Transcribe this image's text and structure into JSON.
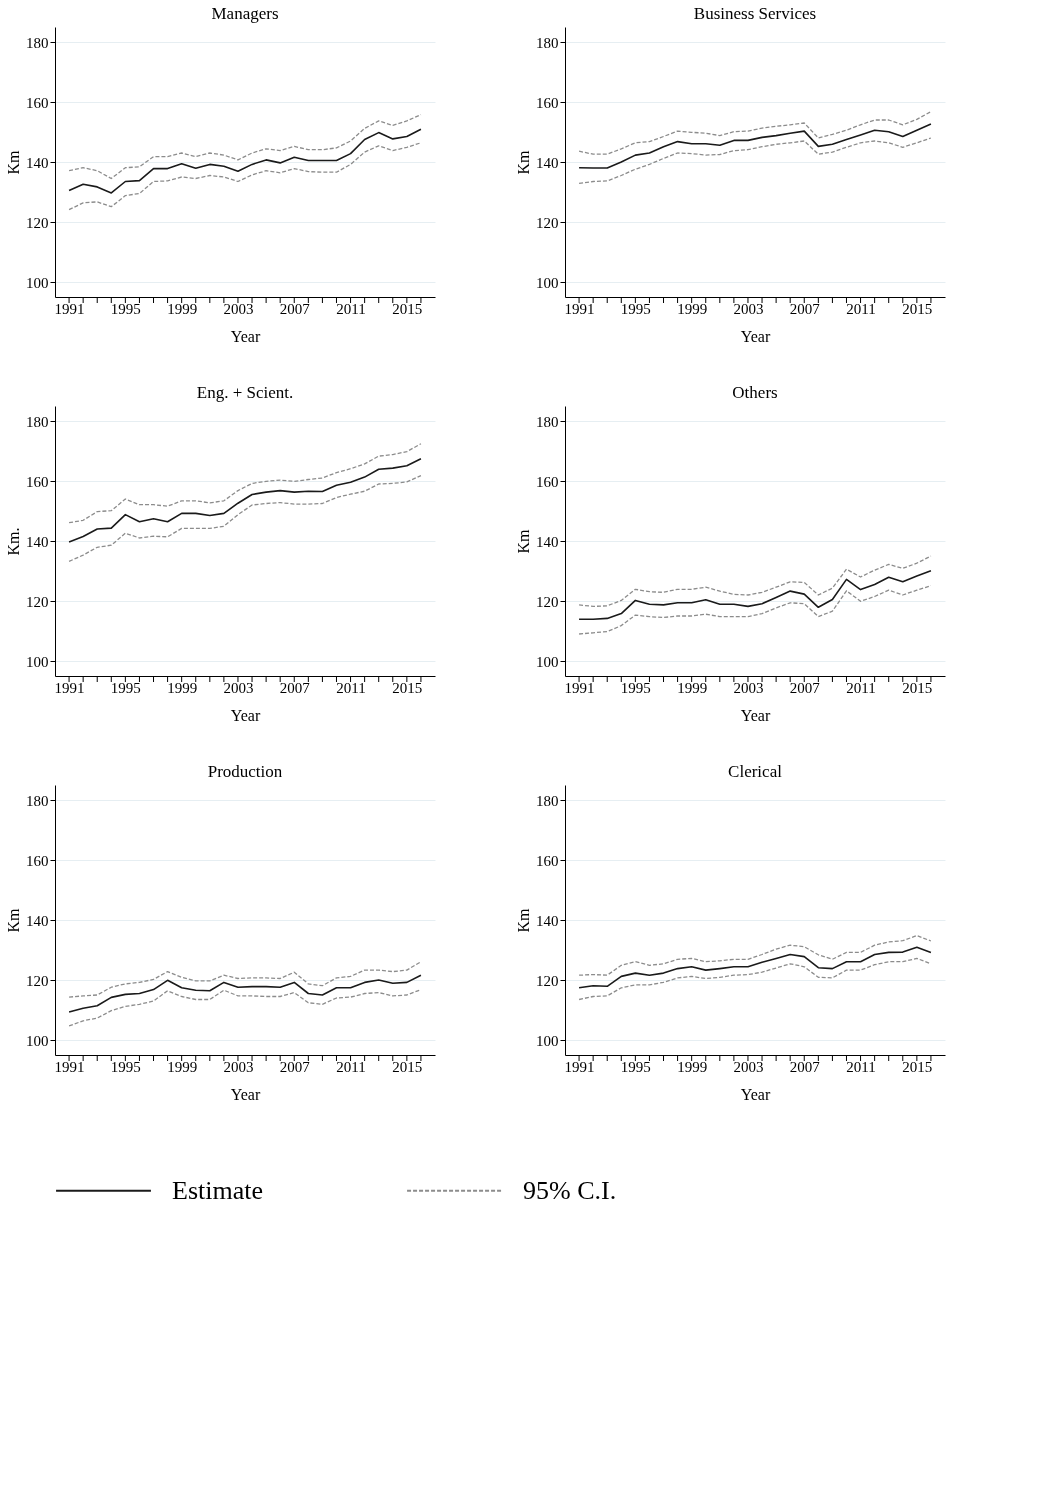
{
  "chart_data": [
    {
      "type": "line",
      "title": "Managers",
      "xlabel": "Year",
      "ylabel": "Km",
      "xlim": [
        1990,
        2017
      ],
      "ylim": [
        95,
        185
      ],
      "yticks": [
        100,
        120,
        140,
        160,
        180
      ],
      "xticks": [
        1991,
        {
          "value": 1992,
          "label": null
        },
        {
          "value": 1993,
          "label": null
        },
        {
          "value": 1994,
          "label": null
        },
        1995,
        {
          "value": 1996,
          "label": null
        },
        {
          "value": 1997,
          "label": null
        },
        {
          "value": 1998,
          "label": null
        },
        1999,
        {
          "value": 2000,
          "label": null
        },
        {
          "value": 2001,
          "label": null
        },
        {
          "value": 2002,
          "label": null
        },
        2003,
        {
          "value": 2004,
          "label": null
        },
        {
          "value": 2005,
          "label": null
        },
        {
          "value": 2006,
          "label": null
        },
        2007,
        {
          "value": 2008,
          "label": null
        },
        {
          "value": 2009,
          "label": null
        },
        {
          "value": 2010,
          "label": null
        },
        2011,
        {
          "value": 2012,
          "label": null
        },
        {
          "value": 2013,
          "label": null
        },
        {
          "value": 2014,
          "label": null
        },
        2015,
        {
          "value": 2016,
          "label": null
        }
      ],
      "x": [
        1991,
        1992,
        1993,
        1994,
        1995,
        1996,
        1997,
        1998,
        1999,
        2000,
        2001,
        2002,
        2003,
        2004,
        2005,
        2006,
        2007,
        2008,
        2009,
        2010,
        2011,
        2012,
        2013,
        2014,
        2015,
        2016
      ],
      "grid": "y",
      "series": [
        {
          "color": "#1a1a1a",
          "line_style": "solid",
          "values": [
            130.5,
            132.6,
            131.7,
            129.7,
            133.5,
            133.8,
            137.8,
            137.8,
            139.4,
            137.9,
            139.2,
            138.6,
            136.9,
            139.2,
            140.7,
            139.7,
            141.6,
            140.5,
            140.5,
            140.5,
            142.8,
            147.5,
            149.8,
            147.7,
            148.5,
            150.9
          ]
        },
        {
          "color": "#8c8c8c",
          "line_style": "dashed",
          "values": [
            137.1,
            138.1,
            137.1,
            134.5,
            138.1,
            138.4,
            141.8,
            141.8,
            143.0,
            141.8,
            143.0,
            142.3,
            140.7,
            143.0,
            144.4,
            143.8,
            145.2,
            144.1,
            144.1,
            144.7,
            147.0,
            151.2,
            153.7,
            152.2,
            153.7,
            155.8
          ]
        },
        {
          "color": "#8c8c8c",
          "line_style": "dashed",
          "values": [
            124.1,
            126.4,
            126.7,
            125.1,
            128.8,
            129.5,
            133.5,
            133.7,
            135.0,
            134.5,
            135.5,
            135.0,
            133.5,
            135.7,
            137.1,
            136.4,
            137.8,
            136.8,
            136.6,
            136.6,
            139.2,
            143.3,
            145.4,
            143.8,
            144.9,
            146.4
          ]
        }
      ]
    },
    {
      "type": "line",
      "title": "Business Services",
      "xlabel": "Year",
      "ylabel": "Km",
      "xlim": [
        1990,
        2017
      ],
      "ylim": [
        95,
        185
      ],
      "yticks": [
        100,
        120,
        140,
        160,
        180
      ],
      "xticks": [
        1991,
        {
          "value": 1992,
          "label": null
        },
        {
          "value": 1993,
          "label": null
        },
        {
          "value": 1994,
          "label": null
        },
        1995,
        {
          "value": 1996,
          "label": null
        },
        {
          "value": 1997,
          "label": null
        },
        {
          "value": 1998,
          "label": null
        },
        1999,
        {
          "value": 2000,
          "label": null
        },
        {
          "value": 2001,
          "label": null
        },
        {
          "value": 2002,
          "label": null
        },
        2003,
        {
          "value": 2004,
          "label": null
        },
        {
          "value": 2005,
          "label": null
        },
        {
          "value": 2006,
          "label": null
        },
        2007,
        {
          "value": 2008,
          "label": null
        },
        {
          "value": 2009,
          "label": null
        },
        {
          "value": 2010,
          "label": null
        },
        2011,
        {
          "value": 2012,
          "label": null
        },
        {
          "value": 2013,
          "label": null
        },
        {
          "value": 2014,
          "label": null
        },
        2015,
        {
          "value": 2016,
          "label": null
        }
      ],
      "x": [
        1991,
        1992,
        1993,
        1994,
        1995,
        1996,
        1997,
        1998,
        1999,
        2000,
        2001,
        2002,
        2003,
        2004,
        2005,
        2006,
        2007,
        2008,
        2009,
        2010,
        2011,
        2012,
        2013,
        2014,
        2015,
        2016
      ],
      "grid": "y",
      "series": [
        {
          "color": "#1a1a1a",
          "line_style": "solid",
          "values": [
            138.1,
            138.0,
            138.0,
            140.0,
            142.3,
            143.0,
            145.1,
            146.8,
            146.1,
            146.1,
            145.6,
            147.2,
            147.2,
            148.2,
            148.8,
            149.6,
            150.3,
            145.2,
            145.9,
            147.5,
            149.0,
            150.6,
            150.1,
            148.5,
            150.6,
            152.7
          ]
        },
        {
          "color": "#8c8c8c",
          "line_style": "dashed",
          "values": [
            143.6,
            142.6,
            142.6,
            144.4,
            146.4,
            146.8,
            148.5,
            150.3,
            149.9,
            149.6,
            148.8,
            150.1,
            150.3,
            151.3,
            151.9,
            152.4,
            153.0,
            148.0,
            149.2,
            150.6,
            152.4,
            154.0,
            154.0,
            152.4,
            154.2,
            156.8
          ]
        },
        {
          "color": "#8c8c8c",
          "line_style": "dashed",
          "values": [
            132.9,
            133.5,
            133.7,
            135.5,
            137.6,
            139.2,
            141.2,
            143.0,
            142.8,
            142.3,
            142.5,
            143.8,
            144.1,
            145.1,
            145.9,
            146.4,
            147.0,
            142.6,
            143.3,
            144.9,
            146.4,
            147.0,
            146.4,
            144.9,
            146.4,
            148.0
          ]
        }
      ]
    },
    {
      "type": "line",
      "title": "Eng. + Scient.",
      "xlabel": "Year",
      "ylabel": "Km.",
      "xlim": [
        1990,
        2017
      ],
      "ylim": [
        95,
        185
      ],
      "yticks": [
        100,
        120,
        140,
        160,
        180
      ],
      "xticks": [
        1991,
        {
          "value": 1992,
          "label": null
        },
        {
          "value": 1993,
          "label": null
        },
        {
          "value": 1994,
          "label": null
        },
        1995,
        {
          "value": 1996,
          "label": null
        },
        {
          "value": 1997,
          "label": null
        },
        {
          "value": 1998,
          "label": null
        },
        1999,
        {
          "value": 2000,
          "label": null
        },
        {
          "value": 2001,
          "label": null
        },
        {
          "value": 2002,
          "label": null
        },
        2003,
        {
          "value": 2004,
          "label": null
        },
        {
          "value": 2005,
          "label": null
        },
        {
          "value": 2006,
          "label": null
        },
        2007,
        {
          "value": 2008,
          "label": null
        },
        {
          "value": 2009,
          "label": null
        },
        {
          "value": 2010,
          "label": null
        },
        2011,
        {
          "value": 2012,
          "label": null
        },
        {
          "value": 2013,
          "label": null
        },
        {
          "value": 2014,
          "label": null
        },
        2015,
        {
          "value": 2016,
          "label": null
        }
      ],
      "x": [
        1991,
        1992,
        1993,
        1994,
        1995,
        1996,
        1997,
        1998,
        1999,
        2000,
        2001,
        2002,
        2003,
        2004,
        2005,
        2006,
        2007,
        2008,
        2009,
        2010,
        2011,
        2012,
        2013,
        2014,
        2015,
        2016
      ],
      "grid": "y",
      "series": [
        {
          "color": "#1a1a1a",
          "line_style": "solid",
          "values": [
            139.7,
            141.5,
            144.0,
            144.3,
            148.8,
            146.4,
            147.4,
            146.4,
            149.2,
            149.2,
            148.5,
            149.2,
            152.6,
            155.5,
            156.3,
            156.8,
            156.3,
            156.6,
            156.5,
            158.6,
            159.6,
            161.3,
            163.9,
            164.3,
            165.1,
            167.4
          ]
        },
        {
          "color": "#8c8c8c",
          "line_style": "dashed",
          "values": [
            146.1,
            146.9,
            149.8,
            150.1,
            154.0,
            152.1,
            152.1,
            151.6,
            153.4,
            153.4,
            152.7,
            153.4,
            156.8,
            159.2,
            159.9,
            160.3,
            159.9,
            160.5,
            161.0,
            162.8,
            164.1,
            165.7,
            168.3,
            168.8,
            169.8,
            172.4
          ]
        },
        {
          "color": "#8c8c8c",
          "line_style": "dashed",
          "values": [
            133.2,
            135.3,
            137.9,
            138.6,
            142.6,
            141.0,
            141.6,
            141.4,
            144.2,
            144.2,
            144.2,
            144.9,
            148.8,
            152.0,
            152.5,
            152.8,
            152.3,
            152.3,
            152.5,
            154.5,
            155.6,
            156.6,
            159.0,
            159.2,
            159.7,
            161.8
          ]
        }
      ]
    },
    {
      "type": "line",
      "title": "Others",
      "xlabel": "Year",
      "ylabel": "Km",
      "xlim": [
        1990,
        2017
      ],
      "ylim": [
        95,
        185
      ],
      "yticks": [
        100,
        120,
        140,
        160,
        180
      ],
      "xticks": [
        1991,
        {
          "value": 1992,
          "label": null
        },
        {
          "value": 1993,
          "label": null
        },
        {
          "value": 1994,
          "label": null
        },
        1995,
        {
          "value": 1996,
          "label": null
        },
        {
          "value": 1997,
          "label": null
        },
        {
          "value": 1998,
          "label": null
        },
        1999,
        {
          "value": 2000,
          "label": null
        },
        {
          "value": 2001,
          "label": null
        },
        {
          "value": 2002,
          "label": null
        },
        2003,
        {
          "value": 2004,
          "label": null
        },
        {
          "value": 2005,
          "label": null
        },
        {
          "value": 2006,
          "label": null
        },
        2007,
        {
          "value": 2008,
          "label": null
        },
        {
          "value": 2009,
          "label": null
        },
        {
          "value": 2010,
          "label": null
        },
        2011,
        {
          "value": 2012,
          "label": null
        },
        {
          "value": 2013,
          "label": null
        },
        {
          "value": 2014,
          "label": null
        },
        2015,
        {
          "value": 2016,
          "label": null
        }
      ],
      "x": [
        1991,
        1992,
        1993,
        1994,
        1995,
        1996,
        1997,
        1998,
        1999,
        2000,
        2001,
        2002,
        2003,
        2004,
        2005,
        2006,
        2007,
        2008,
        2009,
        2010,
        2011,
        2012,
        2013,
        2014,
        2015,
        2016
      ],
      "grid": "y",
      "series": [
        {
          "color": "#1a1a1a",
          "line_style": "solid",
          "values": [
            113.9,
            113.9,
            114.2,
            115.8,
            120.2,
            118.9,
            118.7,
            119.4,
            119.4,
            120.4,
            118.9,
            118.9,
            118.2,
            119.1,
            121.2,
            123.3,
            122.3,
            117.9,
            120.5,
            127.2,
            123.8,
            125.5,
            127.9,
            126.4,
            128.3,
            130.1
          ]
        },
        {
          "color": "#8c8c8c",
          "line_style": "dashed",
          "values": [
            118.7,
            118.2,
            118.4,
            120.2,
            123.9,
            123.1,
            122.9,
            123.9,
            123.9,
            124.6,
            123.3,
            122.2,
            122.0,
            122.9,
            124.6,
            126.4,
            126.2,
            122.0,
            124.3,
            130.6,
            128.0,
            130.3,
            132.2,
            130.9,
            132.6,
            135.0
          ]
        },
        {
          "color": "#8c8c8c",
          "line_style": "dashed",
          "values": [
            109.0,
            109.4,
            109.8,
            111.8,
            115.3,
            114.8,
            114.5,
            115.0,
            115.0,
            115.6,
            114.8,
            114.8,
            114.8,
            115.8,
            117.7,
            119.4,
            119.1,
            114.8,
            116.6,
            123.4,
            119.9,
            121.5,
            123.6,
            122.0,
            123.6,
            125.1
          ]
        }
      ]
    },
    {
      "type": "line",
      "title": "Production",
      "xlabel": "Year",
      "ylabel": "Km",
      "xlim": [
        1990,
        2017
      ],
      "ylim": [
        95,
        185
      ],
      "yticks": [
        100,
        120,
        140,
        160,
        180
      ],
      "xticks": [
        1991,
        {
          "value": 1992,
          "label": null
        },
        {
          "value": 1993,
          "label": null
        },
        {
          "value": 1994,
          "label": null
        },
        1995,
        {
          "value": 1996,
          "label": null
        },
        {
          "value": 1997,
          "label": null
        },
        {
          "value": 1998,
          "label": null
        },
        1999,
        {
          "value": 2000,
          "label": null
        },
        {
          "value": 2001,
          "label": null
        },
        {
          "value": 2002,
          "label": null
        },
        2003,
        {
          "value": 2004,
          "label": null
        },
        {
          "value": 2005,
          "label": null
        },
        {
          "value": 2006,
          "label": null
        },
        2007,
        {
          "value": 2008,
          "label": null
        },
        {
          "value": 2009,
          "label": null
        },
        {
          "value": 2010,
          "label": null
        },
        2011,
        {
          "value": 2012,
          "label": null
        },
        {
          "value": 2013,
          "label": null
        },
        {
          "value": 2014,
          "label": null
        },
        2015,
        {
          "value": 2016,
          "label": null
        }
      ],
      "x": [
        1991,
        1992,
        1993,
        1994,
        1995,
        1996,
        1997,
        1998,
        1999,
        2000,
        2001,
        2002,
        2003,
        2004,
        2005,
        2006,
        2007,
        2008,
        2009,
        2010,
        2011,
        2012,
        2013,
        2014,
        2015,
        2016
      ],
      "grid": "y",
      "series": [
        {
          "color": "#1a1a1a",
          "line_style": "solid",
          "values": [
            109.3,
            110.6,
            111.4,
            114.2,
            115.2,
            115.5,
            116.8,
            119.9,
            117.4,
            116.6,
            116.4,
            119.2,
            117.6,
            117.8,
            117.8,
            117.6,
            119.2,
            115.5,
            115.0,
            117.4,
            117.4,
            119.2,
            120.0,
            118.9,
            119.2,
            121.6
          ]
        },
        {
          "color": "#8c8c8c",
          "line_style": "dashed",
          "values": [
            114.3,
            114.7,
            115.0,
            117.6,
            118.7,
            119.2,
            120.2,
            122.8,
            120.9,
            119.7,
            119.7,
            121.6,
            120.5,
            120.7,
            120.7,
            120.5,
            122.6,
            118.7,
            118.1,
            120.7,
            121.2,
            123.3,
            123.3,
            122.8,
            123.3,
            126.1
          ]
        },
        {
          "color": "#8c8c8c",
          "line_style": "dashed",
          "values": [
            104.7,
            106.4,
            107.3,
            109.8,
            111.2,
            111.9,
            113.0,
            116.4,
            114.5,
            113.5,
            113.5,
            116.6,
            114.7,
            114.7,
            114.5,
            114.5,
            115.8,
            112.4,
            111.9,
            114.0,
            114.3,
            115.5,
            115.8,
            114.7,
            115.0,
            116.8
          ]
        }
      ]
    },
    {
      "type": "line",
      "title": "Clerical",
      "xlabel": "Year",
      "ylabel": "Km",
      "xlim": [
        1990,
        2017
      ],
      "ylim": [
        95,
        185
      ],
      "yticks": [
        100,
        120,
        140,
        160,
        180
      ],
      "xticks": [
        1991,
        {
          "value": 1992,
          "label": null
        },
        {
          "value": 1993,
          "label": null
        },
        {
          "value": 1994,
          "label": null
        },
        1995,
        {
          "value": 1996,
          "label": null
        },
        {
          "value": 1997,
          "label": null
        },
        {
          "value": 1998,
          "label": null
        },
        1999,
        {
          "value": 2000,
          "label": null
        },
        {
          "value": 2001,
          "label": null
        },
        {
          "value": 2002,
          "label": null
        },
        2003,
        {
          "value": 2004,
          "label": null
        },
        {
          "value": 2005,
          "label": null
        },
        {
          "value": 2006,
          "label": null
        },
        2007,
        {
          "value": 2008,
          "label": null
        },
        {
          "value": 2009,
          "label": null
        },
        {
          "value": 2010,
          "label": null
        },
        2011,
        {
          "value": 2012,
          "label": null
        },
        {
          "value": 2013,
          "label": null
        },
        {
          "value": 2014,
          "label": null
        },
        2015,
        {
          "value": 2016,
          "label": null
        }
      ],
      "x": [
        1991,
        1992,
        1993,
        1994,
        1995,
        1996,
        1997,
        1998,
        1999,
        2000,
        2001,
        2002,
        2003,
        2004,
        2005,
        2006,
        2007,
        2008,
        2009,
        2010,
        2011,
        2012,
        2013,
        2014,
        2015,
        2016
      ],
      "grid": "y",
      "legend": "bottom",
      "series": [
        {
          "name": "Estimate",
          "color": "#1a1a1a",
          "line_style": "solid",
          "values": [
            117.4,
            118.1,
            117.9,
            121.2,
            122.3,
            121.6,
            122.3,
            123.8,
            124.4,
            123.3,
            123.8,
            124.4,
            124.4,
            125.9,
            127.2,
            128.5,
            127.8,
            124.1,
            123.8,
            126.1,
            126.1,
            128.5,
            129.2,
            129.3,
            130.9,
            129.2
          ]
        },
        {
          "name": "95% C.I.",
          "color": "#8c8c8c",
          "line_style": "dashed",
          "values": [
            121.6,
            121.8,
            121.6,
            124.9,
            126.1,
            124.9,
            125.4,
            126.9,
            127.2,
            126.1,
            126.4,
            126.9,
            126.9,
            128.5,
            130.3,
            131.6,
            131.1,
            128.4,
            126.9,
            129.2,
            129.2,
            131.6,
            132.7,
            133.1,
            134.8,
            133.0
          ]
        },
        {
          "color": "#8c8c8c",
          "line_style": "dashed",
          "values": [
            113.5,
            114.5,
            114.7,
            117.4,
            118.4,
            118.4,
            119.2,
            120.7,
            121.2,
            120.5,
            120.9,
            121.6,
            121.8,
            122.6,
            124.0,
            125.4,
            124.4,
            120.9,
            120.7,
            123.3,
            123.3,
            125.1,
            126.1,
            126.1,
            127.2,
            125.4
          ]
        }
      ]
    }
  ]
}
